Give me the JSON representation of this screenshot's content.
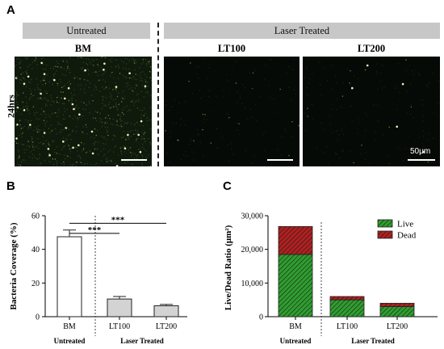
{
  "panel_a": {
    "letter": "A",
    "group_untreated": "Untreated",
    "group_laser": "Laser Treated",
    "row_label": "24hrs",
    "images": [
      {
        "label": "BM",
        "density": "high"
      },
      {
        "label": "LT100",
        "density": "low"
      },
      {
        "label": "LT200",
        "density": "low"
      }
    ],
    "scale_label": "50μm"
  },
  "panel_b": {
    "letter": "B"
  },
  "panel_c": {
    "letter": "C"
  },
  "colors": {
    "live": "#2f9e2f",
    "dead": "#b02020",
    "bar_bm": "#ffffff",
    "bar_lt": "#d3d3d3"
  },
  "chart_data": [
    {
      "type": "bar",
      "panel": "B",
      "categories": [
        "BM",
        "LT100",
        "LT200"
      ],
      "values": [
        47.5,
        10.5,
        6.5
      ],
      "errors": [
        4.0,
        1.5,
        0.8
      ],
      "ylabel": "Bacteria Coverage (%)",
      "ylim": [
        0,
        60
      ],
      "yticks": [
        "0",
        "20",
        "40",
        "60"
      ],
      "group_labels": [
        "Untreated",
        "Laser Treated"
      ],
      "significance": [
        {
          "from": "BM",
          "to": "LT100",
          "label": "***"
        },
        {
          "from": "BM",
          "to": "LT200",
          "label": "***"
        }
      ]
    },
    {
      "type": "bar",
      "panel": "C",
      "stacked": true,
      "categories": [
        "BM",
        "LT100",
        "LT200"
      ],
      "series": [
        {
          "name": "Live",
          "values": [
            18500,
            5000,
            3000
          ]
        },
        {
          "name": "Dead",
          "values": [
            8300,
            1000,
            1000
          ]
        }
      ],
      "ylabel": "Live/Dead Ratio (μm²)",
      "ylim": [
        0,
        30000
      ],
      "yticks": [
        "0",
        "10,000",
        "20,000",
        "30,000"
      ],
      "group_labels": [
        "Untreated",
        "Laser Treated"
      ],
      "legend": "top-right"
    }
  ]
}
